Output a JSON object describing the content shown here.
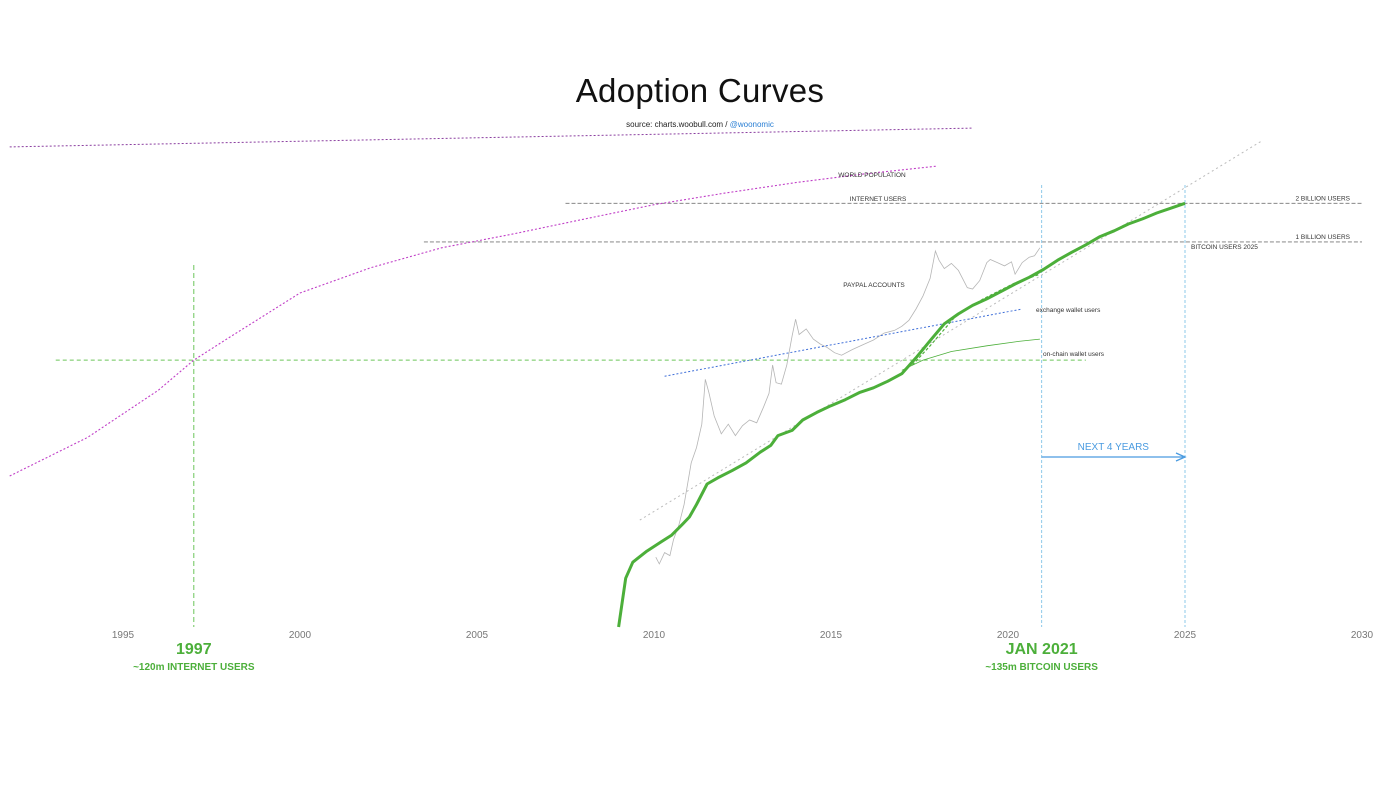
{
  "header": {
    "title": "Adoption Curves",
    "source_prefix": "source: charts.woobull.com / ",
    "source_handle": "@woonomic"
  },
  "colors": {
    "bitcoin_users": "#4caf3a",
    "world_population": "#8b3fa0",
    "internet_users": "#c03fc7",
    "paypal": "#3f6fd8",
    "reference": "#777777",
    "price": "#b5b5b5",
    "guide_green": "#6cc55a",
    "guide_blue": "#8ec9ea",
    "arrow": "#4a9be0",
    "axis_text": "#777777"
  },
  "chart_data": {
    "type": "line",
    "x_axis": {
      "min": 1991.8,
      "max": 2030,
      "ticks": [
        1995,
        2000,
        2005,
        2010,
        2015,
        2020,
        2025,
        2030
      ]
    },
    "y_scale": "log",
    "ylim": [
      1000000,
      8000000000
    ],
    "series": [
      {
        "name": "WORLD POPULATION",
        "points": [
          [
            1991.8,
            5500000000
          ],
          [
            2019,
            7700000000
          ]
        ]
      },
      {
        "name": "INTERNET USERS",
        "points": [
          [
            1991.8,
            15000000
          ],
          [
            1994,
            30000000
          ],
          [
            1996,
            70000000
          ],
          [
            1997,
            120000000
          ],
          [
            1998,
            180000000
          ],
          [
            2000,
            400000000
          ],
          [
            2002,
            630000000
          ],
          [
            2004,
            900000000
          ],
          [
            2006,
            1150000000
          ],
          [
            2008,
            1500000000
          ],
          [
            2010,
            1950000000
          ],
          [
            2012,
            2400000000
          ],
          [
            2014,
            2900000000
          ],
          [
            2016,
            3400000000
          ],
          [
            2018,
            3900000000
          ]
        ]
      },
      {
        "name": "PAYPAL ACCOUNTS",
        "points": [
          [
            2010.3,
            90000000
          ],
          [
            2020.4,
            300000000
          ]
        ]
      },
      {
        "name": "BITCOIN USERS 2025",
        "points": [
          [
            2009,
            1000000
          ],
          [
            2009.2,
            2400000
          ],
          [
            2009.4,
            3200000
          ],
          [
            2009.8,
            3900000
          ],
          [
            2010.2,
            4600000
          ],
          [
            2010.5,
            5200000
          ],
          [
            2010.8,
            6300000
          ],
          [
            2011.0,
            7200000
          ],
          [
            2011.2,
            9000000
          ],
          [
            2011.5,
            13000000
          ],
          [
            2011.8,
            14500000
          ],
          [
            2012.2,
            16500000
          ],
          [
            2012.6,
            19000000
          ],
          [
            2013.0,
            23000000
          ],
          [
            2013.3,
            26000000
          ],
          [
            2013.5,
            31000000
          ],
          [
            2013.9,
            34000000
          ],
          [
            2014.2,
            41000000
          ],
          [
            2014.6,
            47000000
          ],
          [
            2015.0,
            53000000
          ],
          [
            2015.4,
            59000000
          ],
          [
            2015.8,
            67000000
          ],
          [
            2016.2,
            73000000
          ],
          [
            2016.6,
            82000000
          ],
          [
            2017.0,
            94000000
          ],
          [
            2017.4,
            125000000
          ],
          [
            2017.8,
            170000000
          ],
          [
            2018.2,
            230000000
          ],
          [
            2018.6,
            275000000
          ],
          [
            2019.0,
            320000000
          ],
          [
            2019.4,
            360000000
          ],
          [
            2019.8,
            410000000
          ],
          [
            2020.2,
            470000000
          ],
          [
            2020.6,
            530000000
          ],
          [
            2021.0,
            610000000
          ],
          [
            2021.4,
            720000000
          ],
          [
            2021.8,
            830000000
          ],
          [
            2022.2,
            950000000
          ],
          [
            2022.6,
            1100000000
          ],
          [
            2023.0,
            1220000000
          ],
          [
            2023.4,
            1380000000
          ],
          [
            2023.8,
            1510000000
          ],
          [
            2024.2,
            1680000000
          ],
          [
            2024.6,
            1830000000
          ],
          [
            2025.0,
            2000000000
          ]
        ]
      },
      {
        "name": "exchange wallet users",
        "points": [
          [
            2017.3,
            110000000
          ],
          [
            2017.8,
            155000000
          ],
          [
            2018.5,
            260000000
          ],
          [
            2019.3,
            360000000
          ],
          [
            2020.2,
            480000000
          ],
          [
            2020.9,
            560000000
          ]
        ]
      },
      {
        "name": "on-chain wallet users",
        "points": [
          [
            2017.0,
            100000000
          ],
          [
            2017.6,
            120000000
          ],
          [
            2018.4,
            140000000
          ],
          [
            2019.4,
            155000000
          ],
          [
            2020.3,
            168000000
          ],
          [
            2020.9,
            175000000
          ]
        ]
      },
      {
        "name": "Bitcoin price",
        "points": [
          [
            2010.05,
            3500000
          ],
          [
            2010.15,
            3100000
          ],
          [
            2010.3,
            3800000
          ],
          [
            2010.45,
            3600000
          ],
          [
            2010.55,
            4800000
          ],
          [
            2010.7,
            6200000
          ],
          [
            2010.85,
            9000000
          ],
          [
            2011.05,
            19000000
          ],
          [
            2011.2,
            25000000
          ],
          [
            2011.35,
            38000000
          ],
          [
            2011.45,
            85000000
          ],
          [
            2011.55,
            67000000
          ],
          [
            2011.7,
            44000000
          ],
          [
            2011.9,
            32000000
          ],
          [
            2012.1,
            38000000
          ],
          [
            2012.3,
            31000000
          ],
          [
            2012.5,
            37000000
          ],
          [
            2012.7,
            41000000
          ],
          [
            2012.9,
            39000000
          ],
          [
            2013.1,
            52000000
          ],
          [
            2013.25,
            66000000
          ],
          [
            2013.35,
            110000000
          ],
          [
            2013.45,
            80000000
          ],
          [
            2013.6,
            78000000
          ],
          [
            2013.75,
            110000000
          ],
          [
            2013.9,
            185000000
          ],
          [
            2014.0,
            250000000
          ],
          [
            2014.1,
            190000000
          ],
          [
            2014.3,
            210000000
          ],
          [
            2014.5,
            175000000
          ],
          [
            2014.7,
            160000000
          ],
          [
            2014.9,
            150000000
          ],
          [
            2015.1,
            137000000
          ],
          [
            2015.3,
            131000000
          ],
          [
            2015.6,
            145000000
          ],
          [
            2015.9,
            158000000
          ],
          [
            2016.2,
            172000000
          ],
          [
            2016.5,
            195000000
          ],
          [
            2016.8,
            205000000
          ],
          [
            2017.0,
            220000000
          ],
          [
            2017.2,
            245000000
          ],
          [
            2017.4,
            300000000
          ],
          [
            2017.6,
            380000000
          ],
          [
            2017.8,
            520000000
          ],
          [
            2017.95,
            850000000
          ],
          [
            2018.05,
            720000000
          ],
          [
            2018.2,
            620000000
          ],
          [
            2018.4,
            680000000
          ],
          [
            2018.6,
            600000000
          ],
          [
            2018.85,
            440000000
          ],
          [
            2019.0,
            430000000
          ],
          [
            2019.2,
            500000000
          ],
          [
            2019.4,
            690000000
          ],
          [
            2019.5,
            730000000
          ],
          [
            2019.7,
            690000000
          ],
          [
            2019.9,
            650000000
          ],
          [
            2020.1,
            700000000
          ],
          [
            2020.2,
            560000000
          ],
          [
            2020.4,
            690000000
          ],
          [
            2020.6,
            760000000
          ],
          [
            2020.75,
            780000000
          ],
          [
            2020.9,
            900000000
          ]
        ]
      },
      {
        "name": "trend",
        "points": [
          [
            2009.6,
            6800000
          ],
          [
            2027.2,
            6200000000
          ]
        ]
      }
    ],
    "reference_lines": [
      {
        "label": "2 BILLION USERS",
        "value": 2000000000,
        "x_start": 2007.5,
        "x_end": 2030
      },
      {
        "label": "1 BILLION USERS",
        "value": 1000000000,
        "x_start": 2003.5,
        "x_end": 2030
      }
    ],
    "horizontal_marker": {
      "value": 120000000,
      "x_start": 1993.1,
      "x_end": 2022.2
    },
    "markers": [
      {
        "x": 1997,
        "year_label": "1997",
        "note": "~120m INTERNET USERS"
      },
      {
        "x": 2020.95,
        "year_label": "JAN 2021",
        "note": "~135m BITCOIN USERS"
      }
    ],
    "target_marker": {
      "x": 2025,
      "label": ""
    },
    "arrow": {
      "from": 2020.95,
      "to": 2025,
      "label": "NEXT 4 YEARS"
    }
  }
}
